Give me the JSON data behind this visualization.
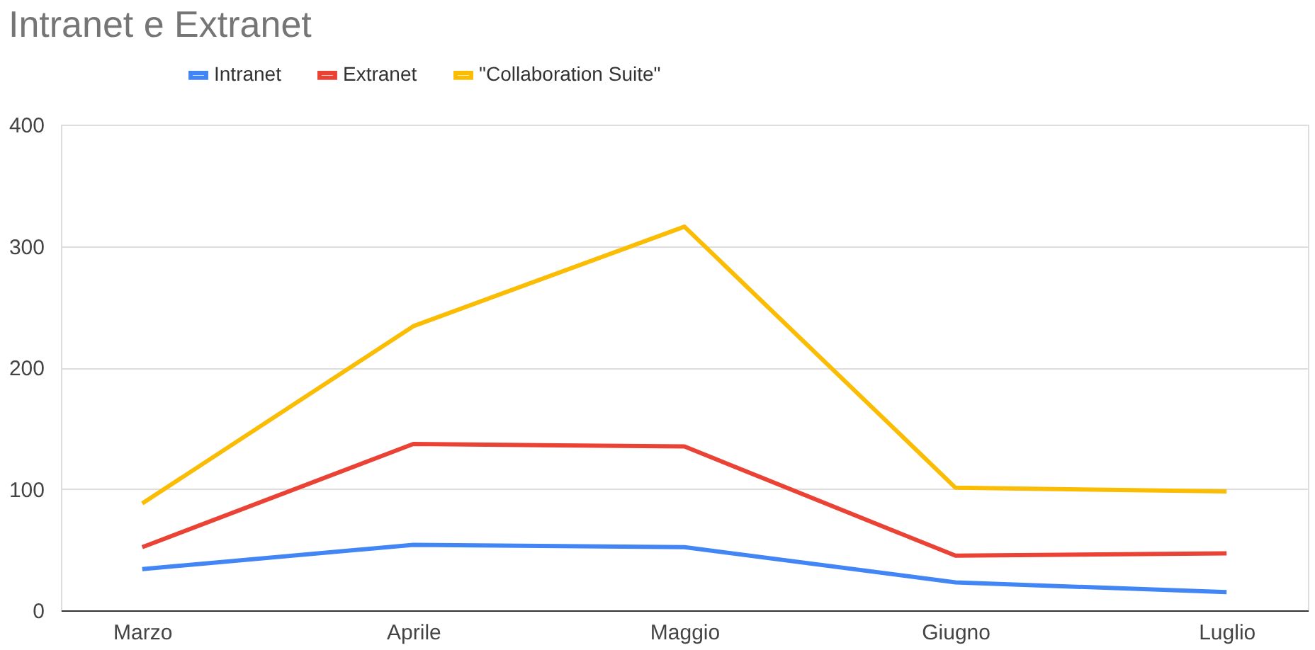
{
  "chart_data": {
    "type": "line",
    "title": "Intranet e Extranet",
    "categories": [
      "Marzo",
      "Aprile",
      "Maggio",
      "Giugno",
      "Luglio"
    ],
    "series": [
      {
        "name": "Intranet",
        "color": "#4285f4",
        "values": [
          34,
          54,
          52,
          23,
          15
        ]
      },
      {
        "name": "Extranet",
        "color": "#ea4335",
        "values": [
          52,
          137,
          135,
          45,
          47
        ]
      },
      {
        "name": "\"Collaboration Suite\"",
        "color": "#fbbc04",
        "values": [
          88,
          234,
          316,
          101,
          98
        ]
      }
    ],
    "ylim": [
      0,
      400
    ],
    "yticks": [
      0,
      100,
      200,
      300,
      400
    ],
    "grid": "y",
    "legend": "top left",
    "marker": "none",
    "line_style": "solid"
  }
}
